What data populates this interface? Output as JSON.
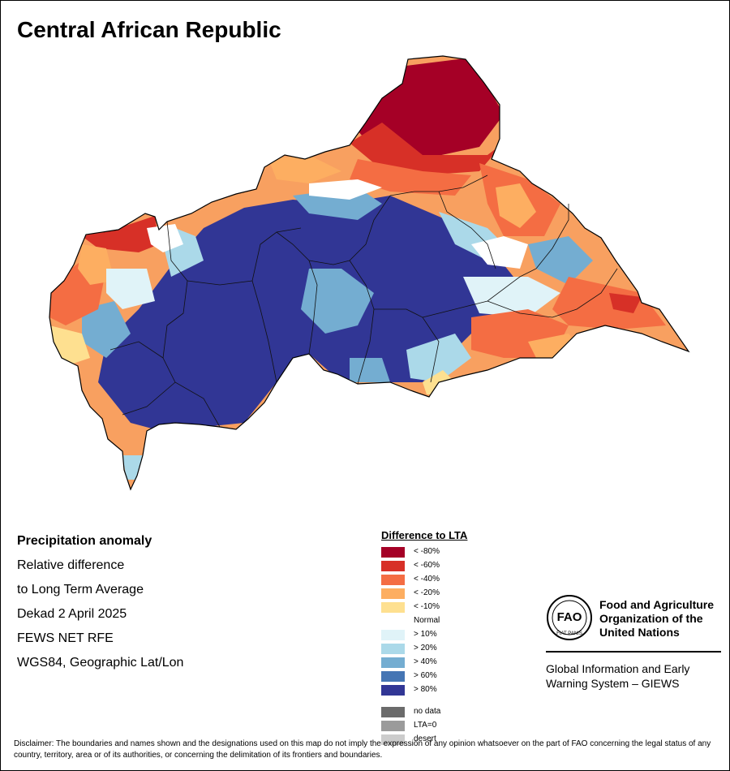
{
  "map": {
    "title": "Central African Republic"
  },
  "meta_lines": {
    "line1": "Precipitation anomaly",
    "line2": "Relative difference",
    "line3": "to Long Term Average",
    "line4": "Dekad 2 April 2025",
    "line5": "FEWS NET RFE",
    "line6": "WGS84, Geographic Lat/Lon"
  },
  "legend": {
    "title": "Difference to LTA",
    "items": [
      {
        "label": "< -80%",
        "color": "#a50026"
      },
      {
        "label": "< -60%",
        "color": "#d73027"
      },
      {
        "label": "< -40%",
        "color": "#f46d43"
      },
      {
        "label": "< -20%",
        "color": "#fdae61"
      },
      {
        "label": "< -10%",
        "color": "#fee090"
      },
      {
        "label": "Normal",
        "color": "#ffffff"
      },
      {
        "label": "> 10%",
        "color": "#e0f3f8"
      },
      {
        "label": "> 20%",
        "color": "#abd9e9"
      },
      {
        "label": "> 40%",
        "color": "#74add1"
      },
      {
        "label": "> 60%",
        "color": "#4575b4"
      },
      {
        "label": "> 80%",
        "color": "#313695"
      }
    ],
    "extra": [
      {
        "label": "no data",
        "color": "#6b6b6b"
      },
      {
        "label": "LTA=0",
        "color": "#9b9b9b"
      },
      {
        "label": "desert",
        "color": "#cccccc"
      }
    ]
  },
  "org": {
    "name_line1": "Food and Agriculture",
    "name_line2": "Organization of the",
    "name_line3": "United Nations",
    "logo_letters": "FAO",
    "logo_motto": "FIAT PANIS",
    "giews_line1": "Global Information and Early",
    "giews_line2": "Warning System – GIEWS"
  },
  "disclaimer": "Disclaimer: The boundaries and names shown and the designations used on this map do not imply the expression of any opinion whatsoever on the part of FAO concerning the legal status of any country, territory, area or of its authorities, or concerning the delimitation of its frontiers and boundaries."
}
